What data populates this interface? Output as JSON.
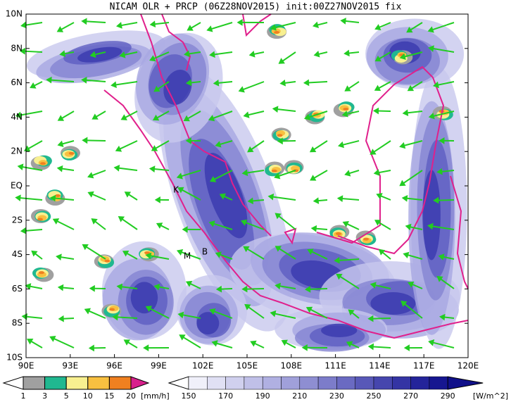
{
  "title": "NICAM OLR + PRCP (06Z28NOV2015) init:00Z27NOV2015 fix",
  "map": {
    "lat_labels": [
      "10N",
      "8N",
      "6N",
      "4N",
      "2N",
      "EQ",
      "2S",
      "4S",
      "6S",
      "8S",
      "10S"
    ],
    "lon_labels": [
      "90E",
      "93E",
      "96E",
      "99E",
      "102E",
      "105E",
      "108E",
      "111E",
      "114E",
      "117E",
      "120E"
    ],
    "place_labels": [
      "K",
      "M",
      "B"
    ]
  },
  "precip_legend": {
    "labels": [
      "1",
      "3",
      "5",
      "10",
      "15",
      "20"
    ],
    "unit": "[mm/h]"
  },
  "olr_legend": {
    "labels": [
      "150",
      "170",
      "190",
      "210",
      "230",
      "250",
      "270",
      "290"
    ],
    "unit": "[W/m^2]"
  }
}
